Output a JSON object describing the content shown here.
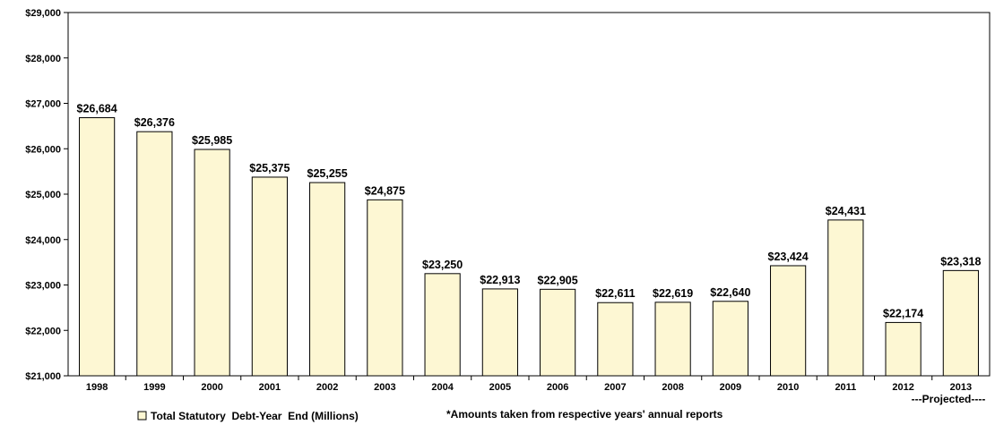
{
  "chart_data": {
    "type": "bar",
    "categories": [
      "1998",
      "1999",
      "2000",
      "2001",
      "2002",
      "2003",
      "2004",
      "2005",
      "2006",
      "2007",
      "2008",
      "2009",
      "2010",
      "2011",
      "2012",
      "2013"
    ],
    "series": [
      {
        "name": "Total Statutory  Debt-Year  End (Millions)",
        "values": [
          26684,
          26376,
          25985,
          25375,
          25255,
          24875,
          23250,
          22913,
          22905,
          22611,
          22619,
          22640,
          23424,
          24431,
          22174,
          23318
        ]
      }
    ],
    "data_labels": [
      "$26,684",
      "$26,376",
      "$25,985",
      "$25,375",
      "$25,255",
      "$24,875",
      "$23,250",
      "$22,913",
      "$22,905",
      "$22,611",
      "$22,619",
      "$22,640",
      "$23,424",
      "$24,431",
      "$22,174",
      "$23,318"
    ],
    "yticks": [
      21000,
      22000,
      23000,
      24000,
      25000,
      26000,
      27000,
      28000,
      29000
    ],
    "ytick_labels": [
      "$21,000",
      "$22,000",
      "$23,000",
      "$24,000",
      "$25,000",
      "$26,000",
      "$27,000",
      "$28,000",
      "$29,000"
    ],
    "ylim": [
      21000,
      29000
    ],
    "grid": false,
    "legend": {
      "label": "Total Statutory  Debt-Year  End (Millions)",
      "position": "bottom"
    },
    "annotations": {
      "projected": "---Projected----",
      "footnote": "*Amounts taken from respective years' annual reports"
    },
    "colors": {
      "bar_fill": "#fdf7d3",
      "bar_stroke": "#000000"
    }
  }
}
